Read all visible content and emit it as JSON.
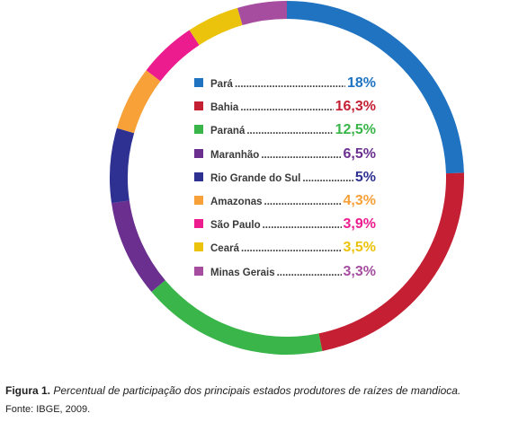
{
  "chart_data": {
    "type": "pie",
    "categories": [
      "Pará",
      "Bahia",
      "Paraná",
      "Maranhão",
      "Rio Grande do Sul",
      "Amazonas",
      "São Paulo",
      "Ceará",
      "Minas Gerais"
    ],
    "values": [
      18,
      16.3,
      12.5,
      6.5,
      5,
      4.3,
      3.9,
      3.5,
      3.3
    ],
    "value_labels": [
      "18%",
      "16,3%",
      "12,5%",
      "6,5%",
      "5%",
      "4,3%",
      "3,9%",
      "3,5%",
      "3,3%"
    ],
    "colors": [
      "#1f73c1",
      "#c41f33",
      "#3ab54a",
      "#6a2f8f",
      "#2e3192",
      "#f7a138",
      "#ec1c8e",
      "#ebc30d",
      "#a64da0"
    ],
    "style": "donut",
    "legend_placement": "center"
  },
  "caption": {
    "label": "Figura 1.",
    "text": "Percentual de participação dos principais estados produtores de raízes de mandioca."
  },
  "source": "Fonte: IBGE, 2009."
}
